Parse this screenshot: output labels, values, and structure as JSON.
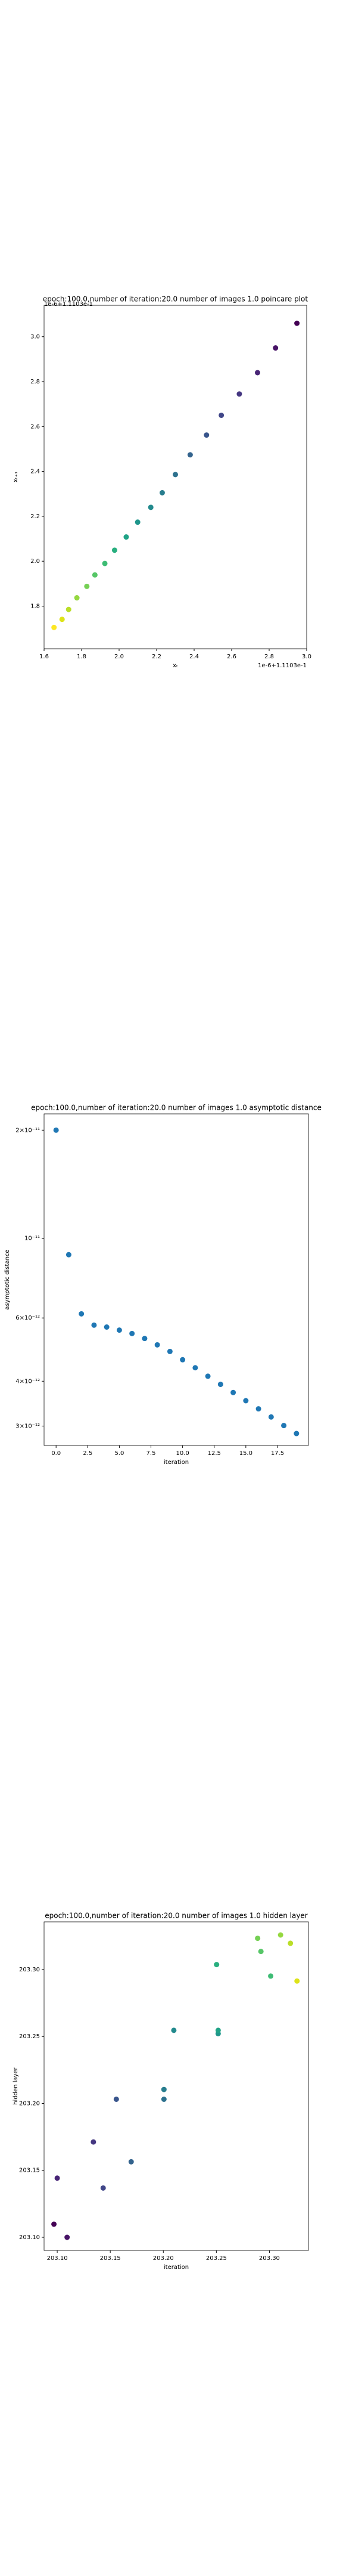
{
  "chart_data": [
    {
      "type": "scatter",
      "title": "epoch:100.0,number of iteration:20.0 number of images 1.0 poincare plot",
      "xlabel": "xₜ",
      "ylabel": "xₜ₊₁",
      "x_offset_label": "1e-6+1.1103e-1",
      "y_offset_label": "1e-6+1.1103e-1",
      "x": [
        1.653,
        1.696,
        1.731,
        1.775,
        1.828,
        1.871,
        1.924,
        1.976,
        2.038,
        2.099,
        2.169,
        2.23,
        2.3,
        2.379,
        2.466,
        2.545,
        2.641,
        2.738,
        2.834,
        2.948
      ],
      "values": [
        1.705,
        1.741,
        1.785,
        1.837,
        1.888,
        1.939,
        1.99,
        2.049,
        2.108,
        2.174,
        2.24,
        2.305,
        2.386,
        2.474,
        2.562,
        2.65,
        2.745,
        2.84,
        2.95,
        3.06
      ],
      "colors": [
        "#fde725",
        "#dde318",
        "#bade28",
        "#95d840",
        "#75d054",
        "#56c667",
        "#3dbc74",
        "#29af7f",
        "#20a386",
        "#1f968b",
        "#238a8d",
        "#287d8e",
        "#2d718e",
        "#33638d",
        "#39558c",
        "#404688",
        "#453781",
        "#482576",
        "#481467",
        "#440154"
      ],
      "xlim": [
        1.6,
        3.0
      ],
      "ylim": [
        1.61,
        3.14
      ],
      "xticks": [
        1.6,
        1.8,
        {
          "value": 2,
          "label": "2.0"
        },
        2.2,
        2.4,
        2.6,
        2.8,
        {
          "value": 3,
          "label": "3.0"
        }
      ],
      "yticks": [
        1.8,
        {
          "value": 2,
          "label": "2.0"
        },
        2.2,
        2.4,
        2.6,
        2.8,
        {
          "value": 3,
          "label": "3.0"
        }
      ]
    },
    {
      "type": "scatter",
      "title": "epoch:100.0,number of iteration:20.0  number of images 1.0 asymptotic distance",
      "xlabel": "iteration",
      "ylabel": "asymptotic distance",
      "yscale": "log",
      "color": "#1f77b4",
      "x": [
        0,
        1,
        2,
        3,
        4,
        5,
        6,
        7,
        8,
        9,
        10,
        11,
        12,
        13,
        14,
        15,
        16,
        17,
        18,
        19
      ],
      "values": [
        2e-11,
        9e-12,
        6.16e-12,
        5.73e-12,
        5.66e-12,
        5.55e-12,
        5.43e-12,
        5.26e-12,
        5.05e-12,
        4.84e-12,
        4.59e-12,
        4.36e-12,
        4.13e-12,
        3.92e-12,
        3.72e-12,
        3.53e-12,
        3.35e-12,
        3.18e-12,
        3.01e-12,
        2.86e-12
      ],
      "xlim": [
        -0.95,
        19.95
      ],
      "ylim": [
        2.65e-12,
        2.22e-11
      ],
      "xticks": [
        {
          "value": 0,
          "label": "0.0"
        },
        2.5,
        {
          "value": 5,
          "label": "5.0"
        },
        7.5,
        {
          "value": 10,
          "label": "10.0"
        },
        12.5,
        {
          "value": 15,
          "label": "15.0"
        },
        17.5
      ],
      "yticks": [
        {
          "value": 3e-12,
          "label": "3×10⁻¹²"
        },
        {
          "value": 4e-12,
          "label": "4×10⁻¹²"
        },
        {
          "value": 6e-12,
          "label": "6×10⁻¹²"
        },
        {
          "value": 1e-11,
          "label": "10⁻¹¹"
        },
        {
          "value": 2e-11,
          "label": "2×10⁻¹¹"
        }
      ]
    },
    {
      "type": "scatter",
      "title": "epoch:100.0,number of iteration:20.0  number of images 1.0 hidden layer",
      "xlabel": "iteration",
      "ylabel": "hidden layer",
      "x": [
        203.0969,
        203.1093,
        203.1,
        203.1341,
        203.1433,
        203.1557,
        203.1697,
        203.2006,
        203.2006,
        203.2099,
        203.2517,
        203.2517,
        203.2502,
        203.3012,
        203.292,
        203.2889,
        203.3105,
        203.3198,
        203.326
      ],
      "values": [
        203.1098,
        203.1,
        203.1442,
        203.1712,
        203.1368,
        203.2031,
        203.1564,
        203.2031,
        203.2104,
        203.2546,
        203.2521,
        203.2546,
        203.3037,
        203.2951,
        203.3135,
        203.3233,
        203.3258,
        203.3196,
        203.2914
      ],
      "colors": [
        "#440154",
        "#481467",
        "#482576",
        "#453781",
        "#404688",
        "#39558c",
        "#33638d",
        "#2d718e",
        "#287d8e",
        "#238a8d",
        "#1f968b",
        "#20a386",
        "#29af7f",
        "#3dbc74",
        "#56c667",
        "#75d054",
        "#95d840",
        "#bade28",
        "#dde318"
      ],
      "xlim": [
        203.0876,
        203.3368
      ],
      "ylim": [
        203.0902,
        203.3356
      ],
      "xticks": [
        {
          "value": 203.1,
          "label": "203.10"
        },
        203.15,
        {
          "value": 203.2,
          "label": "203.20"
        },
        203.25,
        {
          "value": 203.3,
          "label": "203.30"
        }
      ],
      "yticks": [
        {
          "value": 203.1,
          "label": "203.10"
        },
        203.15,
        {
          "value": 203.2,
          "label": "203.20"
        },
        203.25,
        {
          "value": 203.3,
          "label": "203.30"
        }
      ]
    }
  ]
}
